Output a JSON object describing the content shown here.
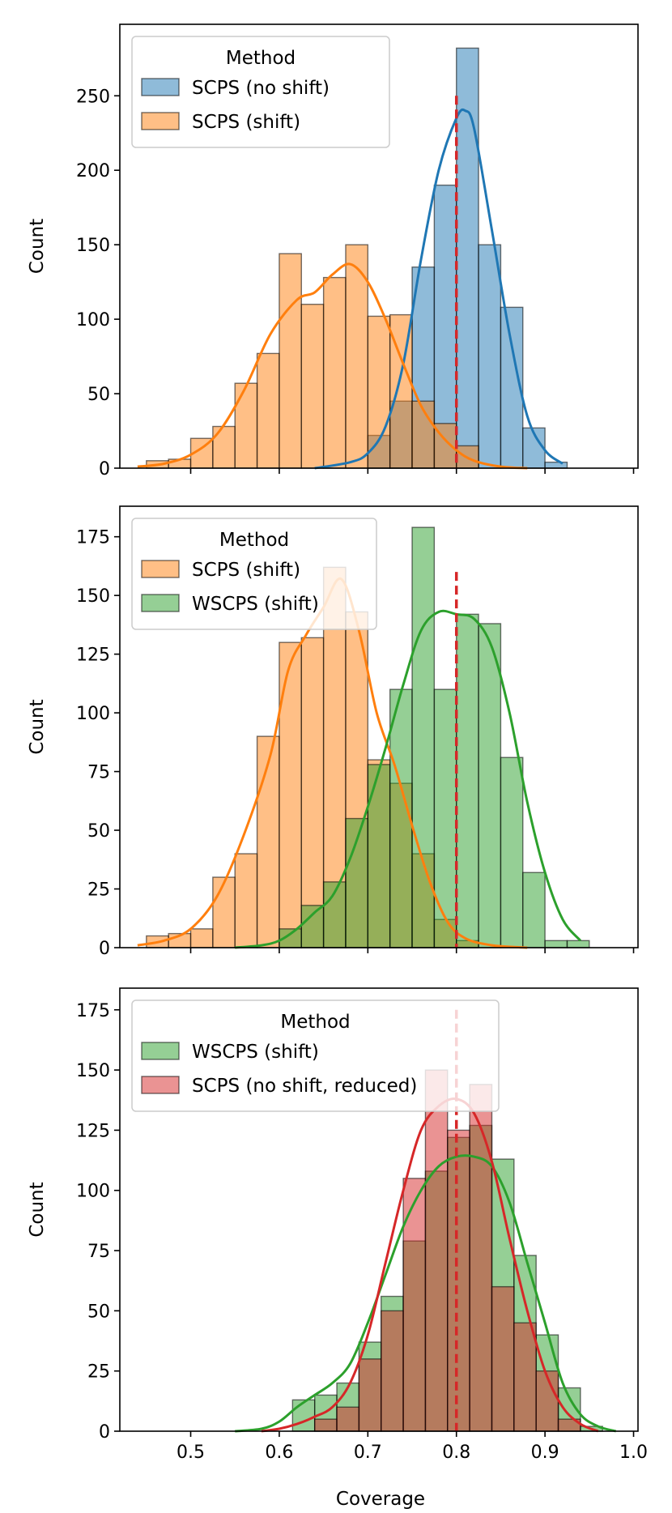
{
  "chart_data": [
    {
      "type": "histogram",
      "xlim": [
        0.42,
        1.005
      ],
      "ylim": [
        0,
        298
      ],
      "yticks": [
        0,
        50,
        100,
        150,
        200,
        250
      ],
      "xticks": [
        0.5,
        0.6,
        0.7,
        0.8,
        0.9,
        1.0
      ],
      "show_xticklabels": false,
      "xlabel": "",
      "ylabel": "Count",
      "target_line": {
        "x": 0.8,
        "y_top": 250,
        "color": "#d62728",
        "style": "dashed"
      },
      "legend": {
        "title": "Method",
        "placement": "top-left",
        "entries": [
          "SCPS (no shift)",
          "SCPS (shift)"
        ]
      },
      "series": [
        {
          "name": "SCPS (no shift)",
          "color": "#1f77b4",
          "bins": [
            [
              0.7,
              0.725,
              22
            ],
            [
              0.725,
              0.75,
              45
            ],
            [
              0.75,
              0.775,
              135
            ],
            [
              0.775,
              0.8,
              190
            ],
            [
              0.8,
              0.825,
              282
            ],
            [
              0.825,
              0.85,
              150
            ],
            [
              0.85,
              0.875,
              108
            ],
            [
              0.875,
              0.9,
              27
            ],
            [
              0.9,
              0.925,
              4
            ]
          ],
          "kde_x": [
            0.64,
            0.68,
            0.7,
            0.72,
            0.74,
            0.76,
            0.78,
            0.8,
            0.81,
            0.82,
            0.84,
            0.86,
            0.88,
            0.9,
            0.92
          ],
          "kde_y": [
            0,
            4,
            10,
            28,
            70,
            140,
            200,
            235,
            240,
            228,
            160,
            90,
            35,
            12,
            3
          ]
        },
        {
          "name": "SCPS (shift)",
          "color": "#ff7f0e",
          "bins": [
            [
              0.45,
              0.475,
              5
            ],
            [
              0.475,
              0.5,
              6
            ],
            [
              0.5,
              0.525,
              20
            ],
            [
              0.525,
              0.55,
              28
            ],
            [
              0.55,
              0.575,
              57
            ],
            [
              0.575,
              0.6,
              77
            ],
            [
              0.6,
              0.625,
              144
            ],
            [
              0.625,
              0.65,
              110
            ],
            [
              0.65,
              0.675,
              128
            ],
            [
              0.675,
              0.7,
              150
            ],
            [
              0.7,
              0.725,
              102
            ],
            [
              0.725,
              0.75,
              103
            ],
            [
              0.75,
              0.775,
              45
            ],
            [
              0.775,
              0.8,
              30
            ],
            [
              0.8,
              0.825,
              15
            ]
          ],
          "kde_x": [
            0.44,
            0.47,
            0.5,
            0.53,
            0.56,
            0.59,
            0.62,
            0.64,
            0.66,
            0.68,
            0.7,
            0.72,
            0.74,
            0.76,
            0.78,
            0.8,
            0.82,
            0.85,
            0.88
          ],
          "kde_y": [
            1,
            3,
            9,
            23,
            52,
            90,
            113,
            118,
            130,
            137,
            125,
            100,
            70,
            42,
            24,
            12,
            5,
            1,
            0
          ]
        }
      ]
    },
    {
      "type": "histogram",
      "xlim": [
        0.42,
        1.005
      ],
      "ylim": [
        0,
        188
      ],
      "yticks": [
        0,
        25,
        50,
        75,
        100,
        125,
        150,
        175
      ],
      "xticks": [
        0.5,
        0.6,
        0.7,
        0.8,
        0.9,
        1.0
      ],
      "show_xticklabels": false,
      "xlabel": "",
      "ylabel": "Count",
      "target_line": {
        "x": 0.8,
        "y_top": 160,
        "color": "#d62728",
        "style": "dashed"
      },
      "legend": {
        "title": "Method",
        "placement": "top-left",
        "entries": [
          "SCPS (shift)",
          "WSCPS (shift)"
        ]
      },
      "series": [
        {
          "name": "SCPS (shift)",
          "color": "#ff7f0e",
          "bins": [
            [
              0.45,
              0.475,
              5
            ],
            [
              0.475,
              0.5,
              6
            ],
            [
              0.5,
              0.525,
              8
            ],
            [
              0.525,
              0.55,
              30
            ],
            [
              0.55,
              0.575,
              40
            ],
            [
              0.575,
              0.6,
              90
            ],
            [
              0.6,
              0.625,
              130
            ],
            [
              0.625,
              0.65,
              132
            ],
            [
              0.65,
              0.675,
              162
            ],
            [
              0.675,
              0.7,
              143
            ],
            [
              0.7,
              0.725,
              80
            ],
            [
              0.725,
              0.75,
              70
            ],
            [
              0.75,
              0.775,
              40
            ],
            [
              0.775,
              0.8,
              12
            ],
            [
              0.8,
              0.825,
              3
            ]
          ],
          "kde_x": [
            0.44,
            0.47,
            0.5,
            0.53,
            0.56,
            0.59,
            0.61,
            0.63,
            0.65,
            0.67,
            0.69,
            0.71,
            0.73,
            0.75,
            0.77,
            0.79,
            0.81,
            0.84,
            0.88
          ],
          "kde_y": [
            1,
            3,
            8,
            22,
            48,
            82,
            118,
            133,
            145,
            157,
            135,
            100,
            78,
            52,
            28,
            11,
            4,
            1,
            0
          ]
        },
        {
          "name": "WSCPS (shift)",
          "color": "#2ca02c",
          "bins": [
            [
              0.6,
              0.625,
              8
            ],
            [
              0.625,
              0.65,
              18
            ],
            [
              0.65,
              0.675,
              28
            ],
            [
              0.675,
              0.7,
              55
            ],
            [
              0.7,
              0.725,
              78
            ],
            [
              0.725,
              0.75,
              110
            ],
            [
              0.75,
              0.775,
              179
            ],
            [
              0.775,
              0.8,
              110
            ],
            [
              0.8,
              0.825,
              142
            ],
            [
              0.825,
              0.85,
              138
            ],
            [
              0.85,
              0.875,
              81
            ],
            [
              0.875,
              0.9,
              32
            ],
            [
              0.9,
              0.925,
              3
            ],
            [
              0.925,
              0.95,
              3
            ]
          ],
          "kde_x": [
            0.55,
            0.58,
            0.6,
            0.62,
            0.64,
            0.66,
            0.68,
            0.7,
            0.72,
            0.74,
            0.76,
            0.78,
            0.8,
            0.82,
            0.84,
            0.86,
            0.88,
            0.9,
            0.92,
            0.94
          ],
          "kde_y": [
            0,
            1,
            3,
            8,
            15,
            22,
            38,
            60,
            85,
            112,
            135,
            143,
            142,
            140,
            128,
            100,
            62,
            32,
            12,
            3
          ]
        }
      ]
    },
    {
      "type": "histogram",
      "xlim": [
        0.42,
        1.005
      ],
      "ylim": [
        0,
        184
      ],
      "yticks": [
        0,
        25,
        50,
        75,
        100,
        125,
        150,
        175
      ],
      "xticks": [
        0.5,
        0.6,
        0.7,
        0.8,
        0.9,
        1.0
      ],
      "show_xticklabels": true,
      "xticklabels": [
        "0.5",
        "0.6",
        "0.7",
        "0.8",
        "0.9",
        "1.0"
      ],
      "xlabel": "Coverage",
      "ylabel": "Count",
      "target_line": {
        "x": 0.8,
        "y_top": 175,
        "color": "#d62728",
        "style": "dashed"
      },
      "legend": {
        "title": "Method",
        "placement": "top-left",
        "entries": [
          "WSCPS (shift)",
          "SCPS (no shift, reduced)"
        ]
      },
      "series": [
        {
          "name": "WSCPS (shift)",
          "color": "#2ca02c",
          "bins": [
            [
              0.615,
              0.64,
              13
            ],
            [
              0.64,
              0.665,
              15
            ],
            [
              0.665,
              0.69,
              20
            ],
            [
              0.69,
              0.715,
              37
            ],
            [
              0.715,
              0.74,
              56
            ],
            [
              0.74,
              0.765,
              79
            ],
            [
              0.765,
              0.79,
              108
            ],
            [
              0.79,
              0.815,
              122
            ],
            [
              0.815,
              0.84,
              127
            ],
            [
              0.84,
              0.865,
              113
            ],
            [
              0.865,
              0.89,
              73
            ],
            [
              0.89,
              0.915,
              40
            ],
            [
              0.915,
              0.94,
              18
            ],
            [
              0.94,
              0.965,
              2
            ]
          ],
          "kde_x": [
            0.55,
            0.58,
            0.6,
            0.62,
            0.64,
            0.66,
            0.68,
            0.7,
            0.72,
            0.74,
            0.76,
            0.78,
            0.8,
            0.82,
            0.84,
            0.86,
            0.88,
            0.9,
            0.92,
            0.94,
            0.96,
            0.98
          ],
          "kde_y": [
            0,
            1,
            4,
            10,
            15,
            20,
            28,
            45,
            65,
            85,
            100,
            110,
            114,
            114,
            110,
            95,
            70,
            45,
            20,
            7,
            2,
            0
          ]
        },
        {
          "name": "SCPS (no shift, reduced)",
          "color": "#d62728",
          "bins": [
            [
              0.64,
              0.665,
              5
            ],
            [
              0.665,
              0.69,
              10
            ],
            [
              0.69,
              0.715,
              30
            ],
            [
              0.715,
              0.74,
              50
            ],
            [
              0.74,
              0.765,
              105
            ],
            [
              0.765,
              0.79,
              150
            ],
            [
              0.79,
              0.815,
              125
            ],
            [
              0.815,
              0.84,
              144
            ],
            [
              0.84,
              0.865,
              60
            ],
            [
              0.865,
              0.89,
              45
            ],
            [
              0.89,
              0.915,
              25
            ],
            [
              0.915,
              0.94,
              5
            ]
          ],
          "kde_x": [
            0.58,
            0.6,
            0.62,
            0.64,
            0.66,
            0.68,
            0.7,
            0.72,
            0.74,
            0.76,
            0.78,
            0.8,
            0.82,
            0.84,
            0.86,
            0.88,
            0.9,
            0.92,
            0.94,
            0.96
          ],
          "kde_y": [
            0,
            1,
            3,
            6,
            10,
            20,
            40,
            70,
            100,
            125,
            135,
            138,
            132,
            112,
            80,
            50,
            25,
            10,
            3,
            0
          ]
        }
      ]
    }
  ]
}
